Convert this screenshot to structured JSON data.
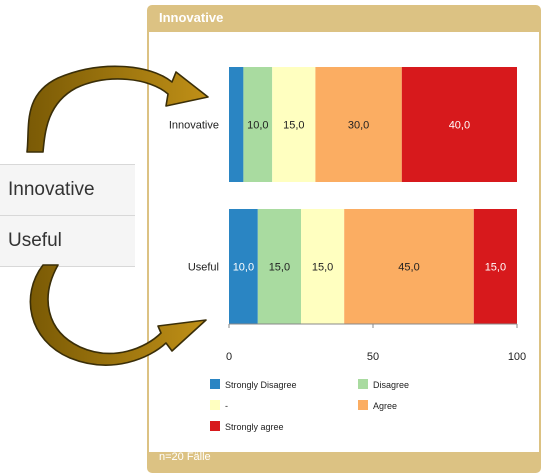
{
  "sidebar": {
    "items": [
      {
        "label": "Innovative"
      },
      {
        "label": "Useful"
      }
    ]
  },
  "panel": {
    "title": "Innovative",
    "footer": "n=20 Fälle"
  },
  "colors": {
    "panel_border": "#dcc283",
    "strongly_disagree": "#2a85c3",
    "disagree": "#a9dba0",
    "neutral": "#ffffc0",
    "agree": "#fbad62",
    "strongly_agree": "#d7191c",
    "arrow": "#b8860b"
  },
  "chart_data": {
    "type": "bar",
    "orientation": "horizontal",
    "stacked": true,
    "categories": [
      "Innovative",
      "Useful"
    ],
    "xlim": [
      0,
      100
    ],
    "x_ticks": [
      "0",
      "50",
      "100"
    ],
    "grid": false,
    "legend_position": "bottom",
    "series": [
      {
        "name": "Strongly Disagree",
        "color": "#2a85c3",
        "values": [
          5.0,
          10.0
        ],
        "labels": [
          "",
          "10,0"
        ],
        "label_color": "#ffffff"
      },
      {
        "name": "Disagree",
        "color": "#a9dba0",
        "values": [
          10.0,
          15.0
        ],
        "labels": [
          "10,0",
          "15,0"
        ],
        "label_color": "#222222"
      },
      {
        "name": "-",
        "color": "#ffffc0",
        "values": [
          15.0,
          15.0
        ],
        "labels": [
          "15,0",
          "15,0"
        ],
        "label_color": "#222222"
      },
      {
        "name": "Agree",
        "color": "#fbad62",
        "values": [
          30.0,
          45.0
        ],
        "labels": [
          "30,0",
          "45,0"
        ],
        "label_color": "#222222"
      },
      {
        "name": "Strongly agree",
        "color": "#d7191c",
        "values": [
          40.0,
          15.0
        ],
        "labels": [
          "40,0",
          "15,0"
        ],
        "label_color": "#ffffff"
      }
    ]
  }
}
